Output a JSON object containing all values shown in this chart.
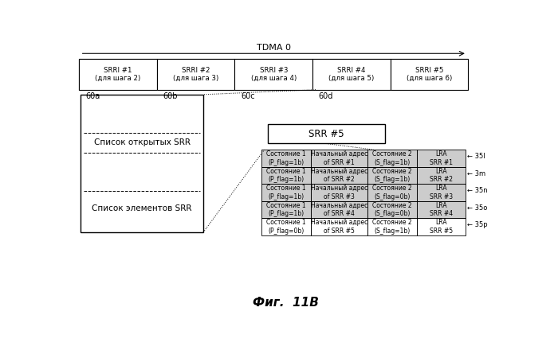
{
  "title": "TDMA 0",
  "fig_caption": "Фиг.  11В",
  "srri_labels": [
    "SRRI #1\n(для шага 2)",
    "SRRI #2\n(для шага 3)",
    "SRRI #3\n(для шага 4)",
    "SRRI #4\n(для шага 5)",
    "SRRI #5\n(для шага 6)"
  ],
  "srri_ids": [
    "60a",
    "60b",
    "60c",
    "60d",
    ""
  ],
  "left_box_labels": [
    "Список открытых SRR",
    "Список элементов SRR"
  ],
  "srr5_label": "SRR #5",
  "table_rows": [
    [
      "Состояние 1\n(P_flag=1b)",
      "Начальный адрес\nof SRR #1",
      "Состояние 2\n(S_flag=1b)",
      "LRA\nSRR #1",
      "35l"
    ],
    [
      "Состояние 1\n(P_flag=1b)",
      "Начальный адрес\nof SRR #2",
      "Состояние 2\n(S_flag=1b)",
      "LRA\nSRR #2",
      "3m"
    ],
    [
      "Состояние 1\n(P_flag=1b)",
      "Начальный адрес\nof SRR #3",
      "Состояние 2\n(S_flag=0b)",
      "LRA\nSRR #3",
      "35n"
    ],
    [
      "Состояние 1\n(P_flag=1b)",
      "Начальный адрес\nof SRR #4",
      "Состояние 2\n(S_flag=0b)",
      "LRA\nSRR #4",
      "35o"
    ],
    [
      "Состояние 1\n(P_flag=0b)",
      "Начальный адрес\nof SRR #5",
      "Состояние 2\n(S_flag=1b)",
      "LRA\nSRR #5",
      "35p"
    ]
  ],
  "shade_color": "#cccccc",
  "white_color": "#ffffff",
  "border_color": "#000000"
}
